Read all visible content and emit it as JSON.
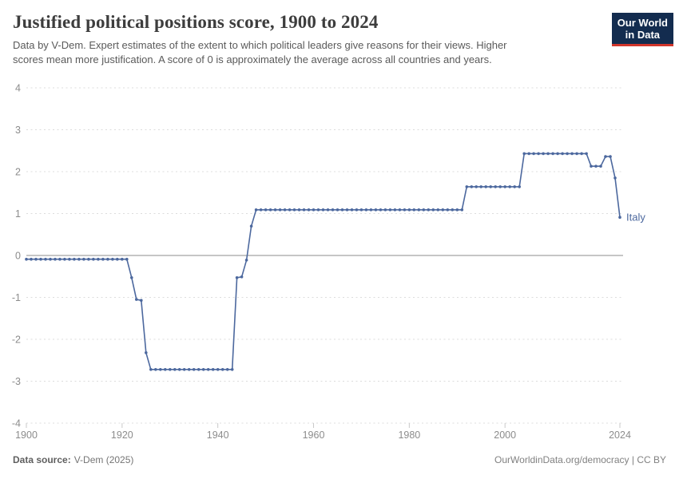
{
  "header": {
    "title": "Justified political positions score, 1900 to 2024",
    "subtitle_line1": "Data by V-Dem. Expert estimates of the extent to which political leaders give reasons for their views. Higher",
    "subtitle_line2": "scores mean more justification. A score of 0 is approximately the average across all countries and years."
  },
  "logo": {
    "line1": "Our World",
    "line2": "in Data"
  },
  "chart_data": {
    "type": "line",
    "title": "Justified political positions score, 1900 to 2024",
    "xlabel": "",
    "ylabel": "",
    "xlim": [
      1900,
      2024
    ],
    "ylim": [
      -4,
      4
    ],
    "xticks": [
      1900,
      1920,
      1940,
      1960,
      1980,
      2000,
      2024
    ],
    "yticks": [
      4,
      3,
      2,
      1,
      0,
      -1,
      -2,
      -3,
      -4
    ],
    "grid": "horizontal-dashed",
    "legend_position": "end-of-line",
    "series": [
      {
        "name": "Italy",
        "color": "#4c689e",
        "points": [
          [
            1900,
            -0.09
          ],
          [
            1901,
            -0.09
          ],
          [
            1902,
            -0.09
          ],
          [
            1903,
            -0.09
          ],
          [
            1904,
            -0.09
          ],
          [
            1905,
            -0.09
          ],
          [
            1906,
            -0.09
          ],
          [
            1907,
            -0.09
          ],
          [
            1908,
            -0.09
          ],
          [
            1909,
            -0.09
          ],
          [
            1910,
            -0.09
          ],
          [
            1911,
            -0.09
          ],
          [
            1912,
            -0.09
          ],
          [
            1913,
            -0.09
          ],
          [
            1914,
            -0.09
          ],
          [
            1915,
            -0.09
          ],
          [
            1916,
            -0.09
          ],
          [
            1917,
            -0.09
          ],
          [
            1918,
            -0.09
          ],
          [
            1919,
            -0.09
          ],
          [
            1920,
            -0.09
          ],
          [
            1921,
            -0.09
          ],
          [
            1922,
            -0.53
          ],
          [
            1923,
            -1.05
          ],
          [
            1924,
            -1.07
          ],
          [
            1925,
            -2.32
          ],
          [
            1926,
            -2.72
          ],
          [
            1927,
            -2.72
          ],
          [
            1928,
            -2.72
          ],
          [
            1929,
            -2.72
          ],
          [
            1930,
            -2.72
          ],
          [
            1931,
            -2.72
          ],
          [
            1932,
            -2.72
          ],
          [
            1933,
            -2.72
          ],
          [
            1934,
            -2.72
          ],
          [
            1935,
            -2.72
          ],
          [
            1936,
            -2.72
          ],
          [
            1937,
            -2.72
          ],
          [
            1938,
            -2.72
          ],
          [
            1939,
            -2.72
          ],
          [
            1940,
            -2.72
          ],
          [
            1941,
            -2.72
          ],
          [
            1942,
            -2.72
          ],
          [
            1943,
            -2.72
          ],
          [
            1944,
            -0.53
          ],
          [
            1945,
            -0.51
          ],
          [
            1946,
            -0.11
          ],
          [
            1947,
            0.7
          ],
          [
            1948,
            1.09
          ],
          [
            1949,
            1.09
          ],
          [
            1950,
            1.09
          ],
          [
            1951,
            1.09
          ],
          [
            1952,
            1.09
          ],
          [
            1953,
            1.09
          ],
          [
            1954,
            1.09
          ],
          [
            1955,
            1.09
          ],
          [
            1956,
            1.09
          ],
          [
            1957,
            1.09
          ],
          [
            1958,
            1.09
          ],
          [
            1959,
            1.09
          ],
          [
            1960,
            1.09
          ],
          [
            1961,
            1.09
          ],
          [
            1962,
            1.09
          ],
          [
            1963,
            1.09
          ],
          [
            1964,
            1.09
          ],
          [
            1965,
            1.09
          ],
          [
            1966,
            1.09
          ],
          [
            1967,
            1.09
          ],
          [
            1968,
            1.09
          ],
          [
            1969,
            1.09
          ],
          [
            1970,
            1.09
          ],
          [
            1971,
            1.09
          ],
          [
            1972,
            1.09
          ],
          [
            1973,
            1.09
          ],
          [
            1974,
            1.09
          ],
          [
            1975,
            1.09
          ],
          [
            1976,
            1.09
          ],
          [
            1977,
            1.09
          ],
          [
            1978,
            1.09
          ],
          [
            1979,
            1.09
          ],
          [
            1980,
            1.09
          ],
          [
            1981,
            1.09
          ],
          [
            1982,
            1.09
          ],
          [
            1983,
            1.09
          ],
          [
            1984,
            1.09
          ],
          [
            1985,
            1.09
          ],
          [
            1986,
            1.09
          ],
          [
            1987,
            1.09
          ],
          [
            1988,
            1.09
          ],
          [
            1989,
            1.09
          ],
          [
            1990,
            1.09
          ],
          [
            1991,
            1.09
          ],
          [
            1992,
            1.64
          ],
          [
            1993,
            1.64
          ],
          [
            1994,
            1.64
          ],
          [
            1995,
            1.64
          ],
          [
            1996,
            1.64
          ],
          [
            1997,
            1.64
          ],
          [
            1998,
            1.64
          ],
          [
            1999,
            1.64
          ],
          [
            2000,
            1.64
          ],
          [
            2001,
            1.64
          ],
          [
            2002,
            1.64
          ],
          [
            2003,
            1.64
          ],
          [
            2004,
            2.43
          ],
          [
            2005,
            2.43
          ],
          [
            2006,
            2.43
          ],
          [
            2007,
            2.43
          ],
          [
            2008,
            2.43
          ],
          [
            2009,
            2.43
          ],
          [
            2010,
            2.43
          ],
          [
            2011,
            2.43
          ],
          [
            2012,
            2.43
          ],
          [
            2013,
            2.43
          ],
          [
            2014,
            2.43
          ],
          [
            2015,
            2.43
          ],
          [
            2016,
            2.43
          ],
          [
            2017,
            2.43
          ],
          [
            2018,
            2.13
          ],
          [
            2019,
            2.13
          ],
          [
            2020,
            2.13
          ],
          [
            2021,
            2.36
          ],
          [
            2022,
            2.36
          ],
          [
            2023,
            1.85
          ],
          [
            2024,
            0.91
          ]
        ]
      }
    ]
  },
  "footer": {
    "source_label": "Data source:",
    "source_value": "V-Dem (2025)",
    "credit": "OurWorldinData.org/democracy | CC BY"
  },
  "colors": {
    "line": "#4c689e",
    "grid": "#dcdcdc",
    "zero_line": "#a3a3a3",
    "tick": "#c9c9c9",
    "axis_text": "#8c8c8c",
    "title_text": "#3d3d3d",
    "subtitle_text": "#5a5a5a",
    "footer_text": "#757575",
    "logo_bg": "#132c4f",
    "logo_stripe": "#d1352b"
  }
}
